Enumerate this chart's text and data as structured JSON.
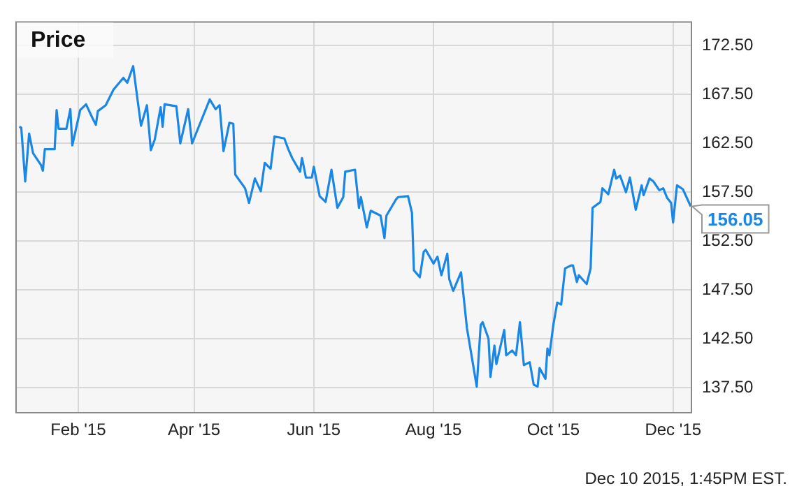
{
  "chart_data": {
    "type": "line",
    "title": "Price",
    "x": [
      "2015-01-02",
      "2015-01-03",
      "2015-01-05",
      "2015-01-07",
      "2015-01-09",
      "2015-01-13",
      "2015-01-14",
      "2015-01-15",
      "2015-01-20",
      "2015-01-21",
      "2015-01-22",
      "2015-01-26",
      "2015-01-28",
      "2015-01-29",
      "2015-02-02",
      "2015-02-05",
      "2015-02-08",
      "2015-02-10",
      "2015-02-11",
      "2015-02-15",
      "2015-02-19",
      "2015-02-24",
      "2015-02-26",
      "2015-03-01",
      "2015-03-03",
      "2015-03-05",
      "2015-03-08",
      "2015-03-10",
      "2015-03-12",
      "2015-03-15",
      "2015-03-16",
      "2015-03-17",
      "2015-03-23",
      "2015-03-25",
      "2015-03-29",
      "2015-03-31",
      "2015-04-09",
      "2015-04-12",
      "2015-04-14",
      "2015-04-16",
      "2015-04-19",
      "2015-04-21",
      "2015-04-22",
      "2015-04-27",
      "2015-04-29",
      "2015-05-02",
      "2015-05-05",
      "2015-05-07",
      "2015-05-10",
      "2015-05-12",
      "2015-05-17",
      "2015-05-19",
      "2015-05-21",
      "2015-05-25",
      "2015-05-26",
      "2015-05-28",
      "2015-05-31",
      "2015-06-01",
      "2015-06-04",
      "2015-06-07",
      "2015-06-10",
      "2015-06-13",
      "2015-06-16",
      "2015-06-17",
      "2015-06-22",
      "2015-06-24",
      "2015-06-25",
      "2015-06-28",
      "2015-06-30",
      "2015-07-05",
      "2015-07-07",
      "2015-07-08",
      "2015-07-13",
      "2015-07-14",
      "2015-07-19",
      "2015-07-21",
      "2015-07-22",
      "2015-07-25",
      "2015-07-27",
      "2015-07-28",
      "2015-08-01",
      "2015-08-03",
      "2015-08-05",
      "2015-08-08",
      "2015-08-09",
      "2015-08-11",
      "2015-08-15",
      "2015-08-18",
      "2015-08-23",
      "2015-08-25",
      "2015-08-26",
      "2015-08-29",
      "2015-08-30",
      "2015-09-01",
      "2015-09-02",
      "2015-09-06",
      "2015-09-07",
      "2015-09-10",
      "2015-09-12",
      "2015-09-14",
      "2015-09-16",
      "2015-09-19",
      "2015-09-21",
      "2015-09-23",
      "2015-09-24",
      "2015-09-27",
      "2015-09-28",
      "2015-09-29",
      "2015-10-01",
      "2015-10-03",
      "2015-10-05",
      "2015-10-07",
      "2015-10-10",
      "2015-10-11",
      "2015-10-13",
      "2015-10-14",
      "2015-10-18",
      "2015-10-20",
      "2015-10-21",
      "2015-10-25",
      "2015-10-26",
      "2015-10-29",
      "2015-11-01",
      "2015-11-02",
      "2015-11-04",
      "2015-11-07",
      "2015-11-09",
      "2015-11-12",
      "2015-11-15",
      "2015-11-16",
      "2015-11-19",
      "2015-11-21",
      "2015-11-24",
      "2015-11-26",
      "2015-11-28",
      "2015-11-30",
      "2015-12-01",
      "2015-12-03",
      "2015-12-06",
      "2015-12-10"
    ],
    "series": [
      {
        "color": "#1a87e6",
        "values": [
          164.2,
          164.1,
          158.6,
          163.5,
          161.5,
          160.3,
          159.7,
          161.9,
          161.9,
          165.9,
          164.0,
          164.0,
          166.0,
          162.3,
          165.9,
          166.5,
          165.2,
          164.4,
          165.8,
          166.4,
          168.0,
          169.2,
          168.7,
          170.4,
          167.3,
          164.3,
          166.4,
          161.8,
          162.9,
          166.2,
          164.2,
          166.5,
          166.3,
          162.5,
          166.0,
          162.5,
          167.0,
          166.0,
          166.4,
          161.7,
          164.6,
          164.5,
          159.3,
          157.9,
          156.4,
          158.9,
          157.6,
          160.5,
          159.9,
          163.2,
          163.0,
          161.9,
          161.0,
          159.6,
          161.0,
          159.0,
          159.0,
          160.1,
          157.1,
          156.5,
          159.8,
          155.9,
          157.0,
          159.6,
          159.8,
          155.9,
          157.0,
          153.9,
          155.6,
          155.1,
          152.8,
          155.1,
          156.8,
          157.0,
          157.1,
          155.4,
          149.5,
          148.8,
          151.4,
          151.6,
          150.2,
          150.9,
          149.0,
          151.2,
          148.6,
          147.4,
          149.3,
          143.6,
          137.6,
          143.9,
          144.2,
          142.5,
          138.6,
          141.8,
          139.9,
          143.4,
          140.8,
          141.3,
          140.8,
          144.2,
          139.8,
          140.1,
          137.8,
          137.6,
          139.5,
          138.4,
          141.5,
          140.8,
          143.9,
          146.2,
          146.0,
          149.7,
          150.0,
          150.0,
          148.3,
          149.0,
          148.1,
          149.7,
          155.9,
          156.5,
          157.9,
          157.3,
          159.8,
          158.9,
          159.2,
          157.5,
          159.0,
          155.7,
          158.2,
          157.2,
          158.9,
          158.6,
          157.7,
          157.9,
          156.9,
          156.4,
          154.4,
          158.2,
          157.8,
          156.05
        ]
      }
    ],
    "xlim": [
      "2014-12-31",
      "2015-12-10"
    ],
    "xticks": [
      {
        "value": "2015-02-01",
        "label": "Feb '15"
      },
      {
        "value": "2015-04-01",
        "label": "Apr '15"
      },
      {
        "value": "2015-06-01",
        "label": "Jun '15"
      },
      {
        "value": "2015-08-01",
        "label": "Aug '15"
      },
      {
        "value": "2015-10-01",
        "label": "Oct '15"
      },
      {
        "value": "2015-12-01",
        "label": "Dec '15"
      }
    ],
    "ylim": [
      135,
      175
    ],
    "yticks": [
      {
        "value": 137.5,
        "label": "137.50"
      },
      {
        "value": 142.5,
        "label": "142.50"
      },
      {
        "value": 147.5,
        "label": "147.50"
      },
      {
        "value": 152.5,
        "label": "152.50"
      },
      {
        "value": 157.5,
        "label": "157.50"
      },
      {
        "value": 162.5,
        "label": "162.50"
      },
      {
        "value": 167.5,
        "label": "167.50"
      },
      {
        "value": 172.5,
        "label": "172.50"
      }
    ],
    "grid": true,
    "legend": false,
    "marker": "none",
    "line_style": "solid",
    "annotations": [
      {
        "text": "156.05",
        "x": "2015-12-10",
        "y": 156.05
      },
      "Dec 10 2015, 1:45PM EST."
    ]
  }
}
